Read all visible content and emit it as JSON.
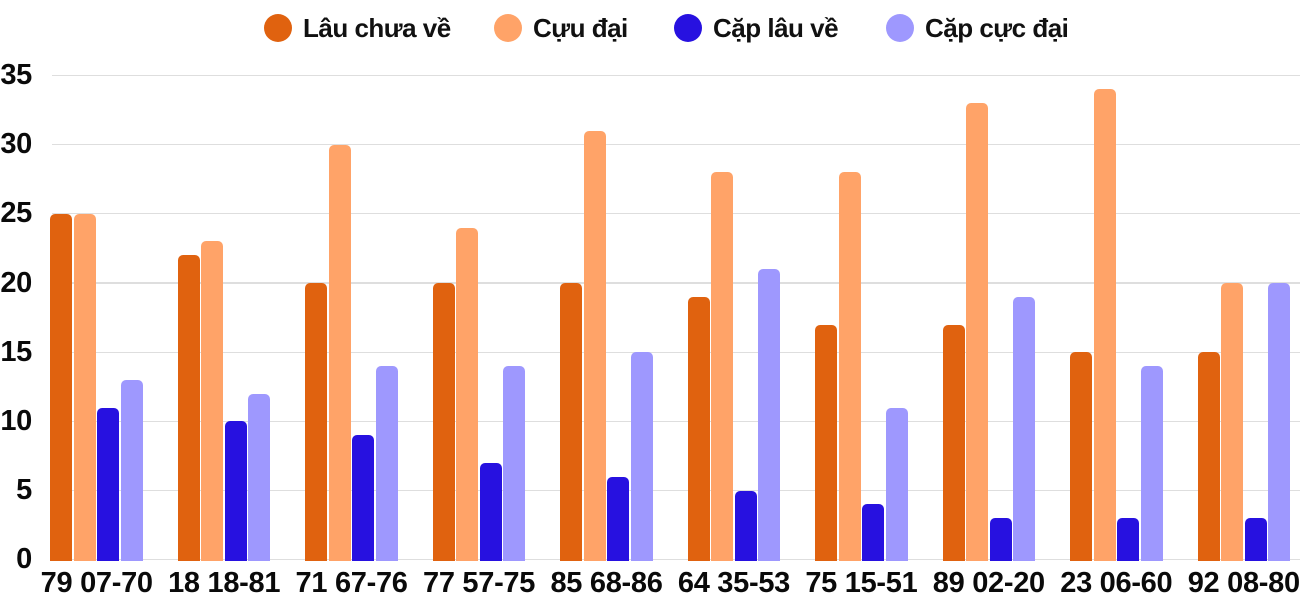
{
  "chart_data": {
    "type": "bar",
    "grouping": "grouped",
    "categories": [
      "79 07-70",
      "18 18-81",
      "71 67-76",
      "77 57-75",
      "85 68-86",
      "64 35-53",
      "75 15-51",
      "89 02-20",
      "23 06-60",
      "92 08-80"
    ],
    "series": [
      {
        "name": "Lâu chưa về",
        "color": "#e0620f",
        "values": [
          25,
          22,
          20,
          20,
          20,
          19,
          17,
          17,
          15,
          15
        ]
      },
      {
        "name": "Cựu đại",
        "color": "#ffa368",
        "values": [
          25,
          23,
          30,
          24,
          31,
          28,
          28,
          33,
          34,
          20
        ]
      },
      {
        "name": "Cặp lâu về",
        "color": "#2711e0",
        "values": [
          11,
          10,
          9,
          7,
          6,
          5,
          4,
          3,
          3,
          3
        ]
      },
      {
        "name": "Cặp cực đại",
        "color": "#9e98fe",
        "values": [
          13,
          12,
          14,
          14,
          15,
          21,
          11,
          19,
          14,
          20
        ]
      }
    ],
    "title": "",
    "xlabel": "",
    "ylabel": "",
    "y_ticks": [
      0,
      5,
      10,
      15,
      20,
      25,
      30,
      35
    ],
    "ylim": [
      0,
      35
    ],
    "grid": "horizontal",
    "legend_position": "top",
    "background_color": "#ffffff",
    "grid_color": "#dedede",
    "text_color": "#0a0a0a"
  }
}
